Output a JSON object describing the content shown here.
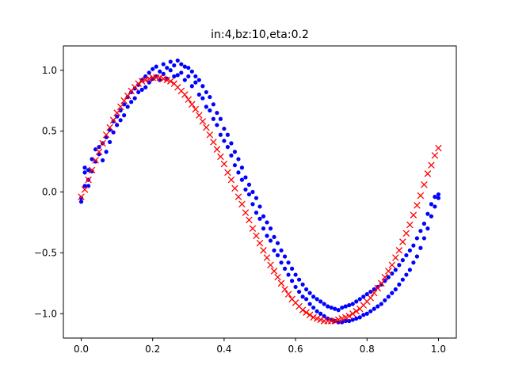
{
  "chart_data": {
    "type": "scatter",
    "title": "in:4,bz:10,eta:0.2",
    "xlabel": "",
    "ylabel": "",
    "xlim": [
      -0.05,
      1.05
    ],
    "ylim": [
      -1.2,
      1.2
    ],
    "x_ticks": [
      0.0,
      0.2,
      0.4,
      0.6,
      0.8,
      1.0
    ],
    "x_tick_labels": [
      "0.0",
      "0.2",
      "0.4",
      "0.6",
      "0.8",
      "1.0"
    ],
    "y_ticks": [
      -1.0,
      -0.5,
      0.0,
      0.5,
      1.0
    ],
    "y_tick_labels": [
      "−1.0",
      "−0.5",
      "0.0",
      "0.5",
      "1.0"
    ],
    "grid": false,
    "series": [
      {
        "marker": "dot",
        "color": "#0000ff",
        "points": [
          [
            0.0,
            -0.05
          ],
          [
            0.0,
            -0.08
          ],
          [
            0.01,
            0.05
          ],
          [
            0.01,
            0.16
          ],
          [
            0.01,
            0.2
          ],
          [
            0.02,
            0.05
          ],
          [
            0.02,
            0.1
          ],
          [
            0.02,
            0.18
          ],
          [
            0.03,
            0.17
          ],
          [
            0.03,
            0.27
          ],
          [
            0.04,
            0.25
          ],
          [
            0.04,
            0.35
          ],
          [
            0.05,
            0.31
          ],
          [
            0.05,
            0.37
          ],
          [
            0.06,
            0.26
          ],
          [
            0.06,
            0.4
          ],
          [
            0.07,
            0.33
          ],
          [
            0.07,
            0.45
          ],
          [
            0.08,
            0.51
          ],
          [
            0.08,
            0.41
          ],
          [
            0.09,
            0.58
          ],
          [
            0.09,
            0.49
          ],
          [
            0.1,
            0.55
          ],
          [
            0.1,
            0.62
          ],
          [
            0.11,
            0.59
          ],
          [
            0.11,
            0.67
          ],
          [
            0.12,
            0.63
          ],
          [
            0.12,
            0.72
          ],
          [
            0.13,
            0.7
          ],
          [
            0.13,
            0.78
          ],
          [
            0.14,
            0.74
          ],
          [
            0.14,
            0.82
          ],
          [
            0.15,
            0.77
          ],
          [
            0.15,
            0.85
          ],
          [
            0.16,
            0.82
          ],
          [
            0.16,
            0.88
          ],
          [
            0.17,
            0.84
          ],
          [
            0.17,
            0.92
          ],
          [
            0.18,
            0.86
          ],
          [
            0.18,
            0.95
          ],
          [
            0.19,
            0.9
          ],
          [
            0.19,
            0.98
          ],
          [
            0.2,
            0.93
          ],
          [
            0.2,
            1.01
          ],
          [
            0.21,
            0.95
          ],
          [
            0.21,
            1.03
          ],
          [
            0.22,
            0.92
          ],
          [
            0.22,
            0.99
          ],
          [
            0.23,
            0.97
          ],
          [
            0.23,
            1.05
          ],
          [
            0.24,
            0.93
          ],
          [
            0.24,
            1.02
          ],
          [
            0.25,
            1.0
          ],
          [
            0.25,
            1.07
          ],
          [
            0.26,
            0.95
          ],
          [
            0.26,
            1.04
          ],
          [
            0.27,
            0.96
          ],
          [
            0.27,
            1.08
          ],
          [
            0.28,
            0.98
          ],
          [
            0.28,
            1.05
          ],
          [
            0.29,
            0.92
          ],
          [
            0.29,
            1.03
          ],
          [
            0.3,
            0.95
          ],
          [
            0.3,
            1.02
          ],
          [
            0.31,
            0.87
          ],
          [
            0.31,
            0.99
          ],
          [
            0.32,
            0.9
          ],
          [
            0.32,
            0.95
          ],
          [
            0.33,
            0.8
          ],
          [
            0.33,
            0.92
          ],
          [
            0.34,
            0.77
          ],
          [
            0.34,
            0.87
          ],
          [
            0.35,
            0.7
          ],
          [
            0.35,
            0.82
          ],
          [
            0.36,
            0.67
          ],
          [
            0.36,
            0.78
          ],
          [
            0.37,
            0.6
          ],
          [
            0.37,
            0.72
          ],
          [
            0.38,
            0.55
          ],
          [
            0.38,
            0.65
          ],
          [
            0.39,
            0.47
          ],
          [
            0.39,
            0.6
          ],
          [
            0.4,
            0.42
          ],
          [
            0.4,
            0.52
          ],
          [
            0.41,
            0.37
          ],
          [
            0.41,
            0.47
          ],
          [
            0.42,
            0.3
          ],
          [
            0.42,
            0.4
          ],
          [
            0.43,
            0.22
          ],
          [
            0.43,
            0.33
          ],
          [
            0.44,
            0.16
          ],
          [
            0.44,
            0.27
          ],
          [
            0.45,
            0.1
          ],
          [
            0.45,
            0.2
          ],
          [
            0.46,
            0.02
          ],
          [
            0.46,
            0.12
          ],
          [
            0.47,
            -0.02
          ],
          [
            0.47,
            0.06
          ],
          [
            0.48,
            -0.1
          ],
          [
            0.48,
            0.0
          ],
          [
            0.49,
            -0.17
          ],
          [
            0.49,
            -0.05
          ],
          [
            0.5,
            -0.22
          ],
          [
            0.5,
            -0.12
          ],
          [
            0.51,
            -0.3
          ],
          [
            0.51,
            -0.2
          ],
          [
            0.52,
            -0.36
          ],
          [
            0.52,
            -0.25
          ],
          [
            0.53,
            -0.4
          ],
          [
            0.53,
            -0.3
          ],
          [
            0.54,
            -0.48
          ],
          [
            0.54,
            -0.37
          ],
          [
            0.55,
            -0.52
          ],
          [
            0.55,
            -0.42
          ],
          [
            0.56,
            -0.58
          ],
          [
            0.56,
            -0.48
          ],
          [
            0.57,
            -0.63
          ],
          [
            0.57,
            -0.53
          ],
          [
            0.58,
            -0.68
          ],
          [
            0.58,
            -0.58
          ],
          [
            0.59,
            -0.73
          ],
          [
            0.59,
            -0.63
          ],
          [
            0.6,
            -0.78
          ],
          [
            0.6,
            -0.68
          ],
          [
            0.61,
            -0.82
          ],
          [
            0.61,
            -0.72
          ],
          [
            0.62,
            -0.86
          ],
          [
            0.62,
            -0.76
          ],
          [
            0.63,
            -0.88
          ],
          [
            0.63,
            -0.8
          ],
          [
            0.64,
            -0.92
          ],
          [
            0.64,
            -0.83
          ],
          [
            0.65,
            -0.95
          ],
          [
            0.65,
            -0.86
          ],
          [
            0.66,
            -0.98
          ],
          [
            0.66,
            -0.88
          ],
          [
            0.67,
            -1.0
          ],
          [
            0.67,
            -0.9
          ],
          [
            0.68,
            -1.02
          ],
          [
            0.68,
            -0.92
          ],
          [
            0.69,
            -1.04
          ],
          [
            0.69,
            -0.94
          ],
          [
            0.7,
            -1.05
          ],
          [
            0.7,
            -0.95
          ],
          [
            0.71,
            -1.06
          ],
          [
            0.71,
            -0.96
          ],
          [
            0.72,
            -1.07
          ],
          [
            0.72,
            -0.97
          ],
          [
            0.73,
            -1.07
          ],
          [
            0.73,
            -0.95
          ],
          [
            0.74,
            -1.06
          ],
          [
            0.74,
            -0.94
          ],
          [
            0.75,
            -1.06
          ],
          [
            0.75,
            -0.93
          ],
          [
            0.76,
            -1.05
          ],
          [
            0.76,
            -0.92
          ],
          [
            0.77,
            -1.04
          ],
          [
            0.77,
            -0.9
          ],
          [
            0.78,
            -1.03
          ],
          [
            0.78,
            -0.88
          ],
          [
            0.79,
            -1.01
          ],
          [
            0.79,
            -0.86
          ],
          [
            0.8,
            -1.0
          ],
          [
            0.8,
            -0.84
          ],
          [
            0.81,
            -0.98
          ],
          [
            0.81,
            -0.82
          ],
          [
            0.82,
            -0.96
          ],
          [
            0.82,
            -0.8
          ],
          [
            0.83,
            -0.94
          ],
          [
            0.83,
            -0.78
          ],
          [
            0.84,
            -0.92
          ],
          [
            0.84,
            -0.76
          ],
          [
            0.85,
            -0.89
          ],
          [
            0.85,
            -0.73
          ],
          [
            0.86,
            -0.86
          ],
          [
            0.86,
            -0.7
          ],
          [
            0.87,
            -0.83
          ],
          [
            0.87,
            -0.67
          ],
          [
            0.88,
            -0.8
          ],
          [
            0.88,
            -0.64
          ],
          [
            0.89,
            -0.76
          ],
          [
            0.89,
            -0.6
          ],
          [
            0.9,
            -0.72
          ],
          [
            0.9,
            -0.56
          ],
          [
            0.91,
            -0.68
          ],
          [
            0.91,
            -0.52
          ],
          [
            0.92,
            -0.64
          ],
          [
            0.92,
            -0.48
          ],
          [
            0.93,
            -0.58
          ],
          [
            0.93,
            -0.44
          ],
          [
            0.94,
            -0.53
          ],
          [
            0.94,
            -0.38
          ],
          [
            0.95,
            -0.46
          ],
          [
            0.95,
            -0.32
          ],
          [
            0.96,
            -0.38
          ],
          [
            0.96,
            -0.26
          ],
          [
            0.97,
            -0.3
          ],
          [
            0.97,
            -0.18
          ],
          [
            0.98,
            -0.2
          ],
          [
            0.98,
            -0.1
          ],
          [
            0.99,
            -0.12
          ],
          [
            0.99,
            -0.04
          ],
          [
            1.0,
            -0.05
          ],
          [
            1.0,
            -0.02
          ]
        ]
      },
      {
        "marker": "x",
        "color": "#ff0000",
        "points": [
          [
            0.0,
            -0.04
          ],
          [
            0.01,
            0.02
          ],
          [
            0.02,
            0.1
          ],
          [
            0.03,
            0.18
          ],
          [
            0.04,
            0.26
          ],
          [
            0.05,
            0.33
          ],
          [
            0.06,
            0.4
          ],
          [
            0.07,
            0.47
          ],
          [
            0.08,
            0.53
          ],
          [
            0.09,
            0.59
          ],
          [
            0.1,
            0.65
          ],
          [
            0.11,
            0.7
          ],
          [
            0.12,
            0.75
          ],
          [
            0.13,
            0.79
          ],
          [
            0.14,
            0.83
          ],
          [
            0.15,
            0.86
          ],
          [
            0.16,
            0.89
          ],
          [
            0.17,
            0.91
          ],
          [
            0.18,
            0.92
          ],
          [
            0.19,
            0.93
          ],
          [
            0.2,
            0.94
          ],
          [
            0.21,
            0.94
          ],
          [
            0.22,
            0.94
          ],
          [
            0.23,
            0.93
          ],
          [
            0.24,
            0.92
          ],
          [
            0.25,
            0.91
          ],
          [
            0.26,
            0.89
          ],
          [
            0.27,
            0.86
          ],
          [
            0.28,
            0.83
          ],
          [
            0.29,
            0.8
          ],
          [
            0.3,
            0.76
          ],
          [
            0.31,
            0.72
          ],
          [
            0.32,
            0.68
          ],
          [
            0.33,
            0.63
          ],
          [
            0.34,
            0.58
          ],
          [
            0.35,
            0.53
          ],
          [
            0.36,
            0.47
          ],
          [
            0.37,
            0.41
          ],
          [
            0.38,
            0.35
          ],
          [
            0.39,
            0.29
          ],
          [
            0.4,
            0.23
          ],
          [
            0.41,
            0.16
          ],
          [
            0.42,
            0.1
          ],
          [
            0.43,
            0.03
          ],
          [
            0.44,
            -0.04
          ],
          [
            0.45,
            -0.1
          ],
          [
            0.46,
            -0.17
          ],
          [
            0.47,
            -0.23
          ],
          [
            0.48,
            -0.3
          ],
          [
            0.49,
            -0.36
          ],
          [
            0.5,
            -0.42
          ],
          [
            0.51,
            -0.48
          ],
          [
            0.52,
            -0.54
          ],
          [
            0.53,
            -0.6
          ],
          [
            0.54,
            -0.65
          ],
          [
            0.55,
            -0.7
          ],
          [
            0.56,
            -0.75
          ],
          [
            0.57,
            -0.8
          ],
          [
            0.58,
            -0.84
          ],
          [
            0.59,
            -0.88
          ],
          [
            0.6,
            -0.91
          ],
          [
            0.61,
            -0.94
          ],
          [
            0.62,
            -0.97
          ],
          [
            0.63,
            -0.99
          ],
          [
            0.64,
            -1.01
          ],
          [
            0.65,
            -1.03
          ],
          [
            0.66,
            -1.04
          ],
          [
            0.67,
            -1.05
          ],
          [
            0.68,
            -1.06
          ],
          [
            0.69,
            -1.06
          ],
          [
            0.7,
            -1.06
          ],
          [
            0.71,
            -1.06
          ],
          [
            0.72,
            -1.05
          ],
          [
            0.73,
            -1.04
          ],
          [
            0.74,
            -1.03
          ],
          [
            0.75,
            -1.02
          ],
          [
            0.76,
            -1.0
          ],
          [
            0.77,
            -0.98
          ],
          [
            0.78,
            -0.96
          ],
          [
            0.79,
            -0.93
          ],
          [
            0.8,
            -0.9
          ],
          [
            0.81,
            -0.87
          ],
          [
            0.82,
            -0.83
          ],
          [
            0.83,
            -0.79
          ],
          [
            0.84,
            -0.75
          ],
          [
            0.85,
            -0.7
          ],
          [
            0.86,
            -0.65
          ],
          [
            0.87,
            -0.6
          ],
          [
            0.88,
            -0.54
          ],
          [
            0.89,
            -0.48
          ],
          [
            0.9,
            -0.41
          ],
          [
            0.91,
            -0.34
          ],
          [
            0.92,
            -0.27
          ],
          [
            0.93,
            -0.19
          ],
          [
            0.94,
            -0.11
          ],
          [
            0.95,
            -0.03
          ],
          [
            0.96,
            0.06
          ],
          [
            0.97,
            0.15
          ],
          [
            0.98,
            0.22
          ],
          [
            0.99,
            0.3
          ],
          [
            1.0,
            0.36
          ]
        ]
      }
    ]
  }
}
